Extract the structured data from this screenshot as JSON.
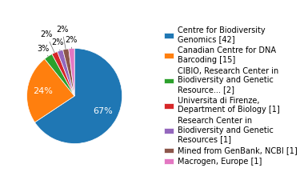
{
  "chart_data": {
    "type": "pie",
    "labels": [
      "Centre for Biodiversity\nGenomics [42]",
      "Canadian Centre for DNA\nBarcoding [15]",
      "CIBIO, Research Center in\nBiodiversity and Genetic\nResource... [2]",
      "Universita di Firenze,\nDepartment of Biology [1]",
      "Research Center in\nBiodiversity and Genetic\nResources [1]",
      "Mined from GenBank, NCBI [1]",
      "Macrogen, Europe [1]"
    ],
    "values": [
      67,
      24,
      3,
      2,
      2,
      2,
      2
    ],
    "value_labels": [
      "67%",
      "24%",
      "3%",
      "2%",
      "2%",
      "2%",
      "2%"
    ],
    "data_labels": true,
    "legend": "right"
  }
}
